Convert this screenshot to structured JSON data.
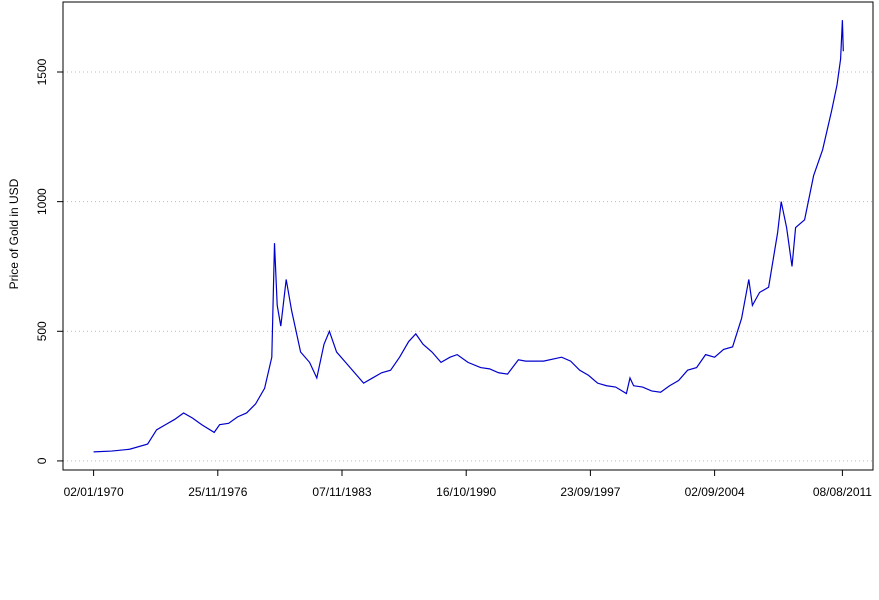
{
  "chart_data": {
    "type": "line",
    "ylabel": "Price of Gold in USD",
    "xlim": [
      1968.3,
      2013.3
    ],
    "ylim": [
      -35,
      1770
    ],
    "xticks": [
      {
        "value": 1970.0,
        "label": "02/01/1970"
      },
      {
        "value": 1976.9,
        "label": "25/11/1976"
      },
      {
        "value": 1983.8,
        "label": "07/11/1983"
      },
      {
        "value": 1990.7,
        "label": "16/10/1990"
      },
      {
        "value": 1997.6,
        "label": "23/09/1997"
      },
      {
        "value": 2004.5,
        "label": "02/09/2004"
      },
      {
        "value": 2011.6,
        "label": "08/08/2011"
      }
    ],
    "yticks": [
      0,
      500,
      1000,
      1500
    ],
    "grid": true,
    "x": [
      1970.0,
      1971,
      1972,
      1973,
      1973.5,
      1974,
      1974.5,
      1975,
      1975.5,
      1976,
      1976.7,
      1977,
      1977.5,
      1978,
      1978.5,
      1979,
      1979.5,
      1979.9,
      1980.05,
      1980.2,
      1980.4,
      1980.7,
      1981,
      1981.5,
      1982,
      1982.4,
      1982.8,
      1983.1,
      1983.5,
      1984,
      1984.5,
      1985,
      1985.5,
      1986,
      1986.5,
      1987,
      1987.5,
      1987.9,
      1988.3,
      1988.8,
      1989.3,
      1989.8,
      1990.2,
      1990.8,
      1991.5,
      1992,
      1992.5,
      1993,
      1993.6,
      1994,
      1995,
      1996,
      1996.5,
      1997,
      1997.5,
      1998,
      1998.5,
      1999,
      1999.6,
      1999.8,
      2000,
      2000.5,
      2001,
      2001.5,
      2002,
      2002.5,
      2003,
      2003.5,
      2004,
      2004.5,
      2005,
      2005.5,
      2006,
      2006.4,
      2006.6,
      2007,
      2007.5,
      2008,
      2008.2,
      2008.5,
      2008.8,
      2009,
      2009.5,
      2010,
      2010.5,
      2011,
      2011.3,
      2011.5,
      2011.6,
      2011.65
    ],
    "series": [
      {
        "color": "#0000cc",
        "values": [
          35,
          38,
          45,
          65,
          120,
          140,
          160,
          185,
          165,
          140,
          110,
          140,
          145,
          170,
          185,
          220,
          280,
          400,
          840,
          600,
          520,
          700,
          580,
          420,
          380,
          320,
          450,
          500,
          420,
          380,
          340,
          300,
          320,
          340,
          350,
          400,
          460,
          490,
          450,
          420,
          380,
          400,
          410,
          380,
          360,
          355,
          340,
          335,
          390,
          385,
          385,
          400,
          385,
          350,
          330,
          300,
          290,
          285,
          260,
          320,
          290,
          285,
          270,
          265,
          290,
          310,
          350,
          360,
          410,
          400,
          430,
          440,
          550,
          700,
          600,
          650,
          670,
          880,
          1000,
          900,
          750,
          900,
          930,
          1100,
          1200,
          1350,
          1450,
          1550,
          1700,
          1580
        ]
      }
    ]
  }
}
